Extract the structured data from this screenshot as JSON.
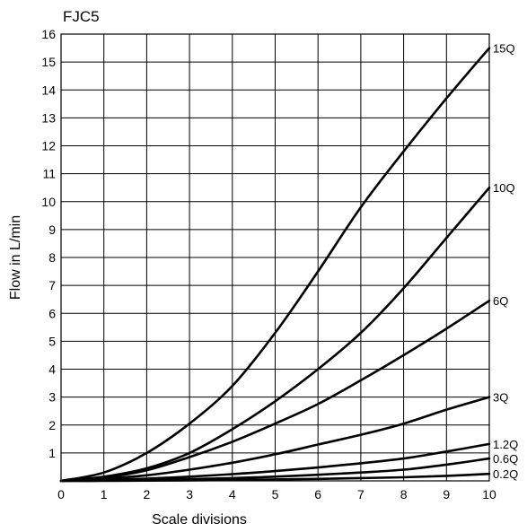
{
  "chart_data": {
    "type": "line",
    "title": "FJC5",
    "xlabel": "Scale divisions",
    "ylabel": "Flow in L/min",
    "xlim": [
      0,
      10
    ],
    "ylim": [
      0,
      16
    ],
    "xticks": [
      0,
      1,
      2,
      3,
      4,
      5,
      6,
      7,
      8,
      9,
      10
    ],
    "yticks": [
      1,
      2,
      3,
      4,
      5,
      6,
      7,
      8,
      9,
      10,
      11,
      12,
      13,
      14,
      15,
      16
    ],
    "grid": true,
    "legend": "labels at right end of each curve",
    "series": [
      {
        "name": "15Q",
        "x": [
          0,
          1,
          2,
          3,
          4,
          5,
          6,
          7,
          8,
          9,
          10
        ],
        "y": [
          0,
          0.3,
          1.0,
          2.05,
          3.4,
          5.3,
          7.5,
          9.8,
          11.8,
          13.7,
          15.5
        ]
      },
      {
        "name": "10Q",
        "x": [
          0,
          1,
          2,
          3,
          4,
          5,
          6,
          7,
          8,
          9,
          10
        ],
        "y": [
          0,
          0.15,
          0.45,
          1.0,
          1.85,
          2.85,
          4.0,
          5.3,
          6.9,
          8.7,
          10.5
        ]
      },
      {
        "name": "6Q",
        "x": [
          0,
          1,
          2,
          3,
          4,
          5,
          6,
          7,
          8,
          9,
          10
        ],
        "y": [
          0,
          0.12,
          0.38,
          0.85,
          1.4,
          2.05,
          2.75,
          3.6,
          4.5,
          5.45,
          6.45
        ]
      },
      {
        "name": "3Q",
        "x": [
          0,
          1,
          2,
          3,
          4,
          5,
          6,
          7,
          8,
          9,
          10
        ],
        "y": [
          0,
          0.08,
          0.2,
          0.4,
          0.65,
          0.95,
          1.3,
          1.65,
          2.05,
          2.55,
          3.0
        ]
      },
      {
        "name": "1.2Q",
        "x": [
          0,
          1,
          2,
          3,
          4,
          5,
          6,
          7,
          8,
          9,
          10
        ],
        "y": [
          0,
          0.03,
          0.08,
          0.15,
          0.24,
          0.35,
          0.48,
          0.63,
          0.8,
          1.05,
          1.32
        ]
      },
      {
        "name": "0.6Q",
        "x": [
          0,
          1,
          2,
          3,
          4,
          5,
          6,
          7,
          8,
          9,
          10
        ],
        "y": [
          0,
          0.01,
          0.03,
          0.06,
          0.1,
          0.15,
          0.22,
          0.3,
          0.4,
          0.58,
          0.8
        ]
      },
      {
        "name": "0.2Q",
        "x": [
          0,
          1,
          2,
          3,
          4,
          5,
          6,
          7,
          8,
          9,
          10
        ],
        "y": [
          0,
          0,
          0.01,
          0.02,
          0.03,
          0.05,
          0.07,
          0.1,
          0.13,
          0.18,
          0.25
        ]
      }
    ]
  }
}
